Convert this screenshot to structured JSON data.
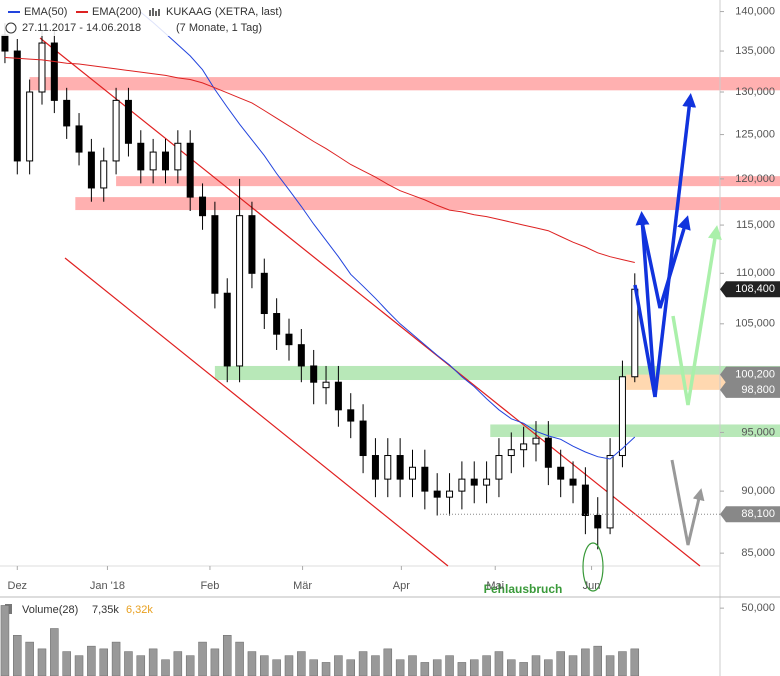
{
  "chart_data": {
    "type": "candlestick",
    "title": "KUKAAG (XETRA, last)",
    "subtitle": "27.11.2017 - 14.06.2018",
    "period": "(7 Monate, 1 Tag)",
    "log_scale": true,
    "ylim": [
      84000,
      141500
    ],
    "yticks": [
      {
        "value": 85000,
        "label": "85,000"
      },
      {
        "value": 90000,
        "label": "90,000"
      },
      {
        "value": 95000,
        "label": "95,000"
      },
      {
        "value": 105000,
        "label": "105,000"
      },
      {
        "value": 110000,
        "label": "110,000"
      },
      {
        "value": 115000,
        "label": "115,000"
      },
      {
        "value": 120000,
        "label": "120,000"
      },
      {
        "value": 125000,
        "label": "125,000"
      },
      {
        "value": 130000,
        "label": "130,000"
      },
      {
        "value": 135000,
        "label": "135,000"
      },
      {
        "value": 140000,
        "label": "140,000"
      }
    ],
    "xlim": [
      -0.4,
      57.9
    ],
    "xticks": [
      {
        "value": 1,
        "label": "Dez"
      },
      {
        "value": 8.3,
        "label": "Jan '18"
      },
      {
        "value": 16.6,
        "label": "Feb"
      },
      {
        "value": 24.1,
        "label": "Mär"
      },
      {
        "value": 32.1,
        "label": "Apr"
      },
      {
        "value": 39.7,
        "label": "Mai"
      },
      {
        "value": 47.5,
        "label": "Jun"
      }
    ],
    "open": [
      137000,
      135000,
      122000,
      130000,
      136000,
      129000,
      126000,
      123000,
      119000,
      122000,
      129000,
      124000,
      121000,
      123000,
      121000,
      124000,
      118000,
      116000,
      108000,
      101000,
      116000,
      110000,
      106000,
      104000,
      103000,
      101000,
      99000,
      99500,
      97000,
      96000,
      93000,
      91000,
      93000,
      91000,
      92000,
      90000,
      89500,
      90000,
      91000,
      90500,
      91000,
      93000,
      93500,
      94000,
      94500,
      92000,
      91000,
      90500,
      88000,
      87000,
      93000,
      100000
    ],
    "high": [
      138500,
      136500,
      131500,
      137500,
      137500,
      130500,
      127500,
      124500,
      123500,
      130500,
      130500,
      125500,
      124500,
      124500,
      125500,
      125500,
      119500,
      117500,
      109500,
      120000,
      117500,
      111500,
      107500,
      105500,
      104500,
      102500,
      101000,
      101000,
      98500,
      97500,
      94500,
      94500,
      94500,
      93500,
      93500,
      91500,
      91500,
      92500,
      92500,
      92500,
      94500,
      95000,
      95500,
      96000,
      96000,
      93500,
      92500,
      92000,
      89500,
      94500,
      101500,
      110000
    ],
    "low": [
      133500,
      120500,
      120500,
      128500,
      127500,
      124500,
      121500,
      117500,
      117500,
      120500,
      122500,
      119500,
      119500,
      119500,
      119500,
      116500,
      114500,
      106500,
      99500,
      99500,
      108500,
      104500,
      102500,
      101500,
      99500,
      97500,
      97500,
      95500,
      94500,
      91500,
      89500,
      89500,
      89500,
      89500,
      88500,
      88000,
      88000,
      88500,
      89000,
      89000,
      89500,
      91500,
      92000,
      92500,
      90500,
      89500,
      89000,
      86500,
      85300,
      86500,
      92000,
      99500
    ],
    "close": [
      135000,
      122000,
      130000,
      136000,
      129000,
      126000,
      123000,
      119000,
      122000,
      129000,
      124000,
      121000,
      123000,
      121000,
      124000,
      118000,
      116000,
      108000,
      101000,
      116000,
      110000,
      106000,
      104000,
      103000,
      101000,
      99500,
      99500,
      97000,
      96000,
      93000,
      91000,
      93000,
      91000,
      92000,
      90000,
      89500,
      90000,
      91000,
      90500,
      91000,
      93000,
      93500,
      94000,
      94500,
      92000,
      91000,
      90500,
      88000,
      87000,
      93000,
      100000,
      108400
    ],
    "series": [
      {
        "name": "EMA(50)",
        "color": "#2244dd",
        "values": [
          null,
          null,
          null,
          null,
          null,
          null,
          null,
          null,
          null,
          null,
          null,
          139900,
          138600,
          137200,
          135800,
          134400,
          132700,
          130300,
          128200,
          126200,
          124400,
          122600,
          120600,
          118800,
          117000,
          115100,
          113400,
          111700,
          109900,
          108700,
          107500,
          106200,
          105000,
          104000,
          103000,
          102000,
          101100,
          100000,
          99100,
          98000,
          97000,
          96200,
          95800,
          95100,
          94700,
          94400,
          93800,
          93300,
          92900,
          92700,
          93600,
          94600
        ]
      },
      {
        "name": "EMA(200)",
        "color": "#dd2222",
        "values": [
          134200,
          134100,
          134000,
          133900,
          133700,
          133500,
          133400,
          133200,
          133000,
          132800,
          132600,
          132400,
          132200,
          132000,
          131700,
          131500,
          131100,
          130500,
          129900,
          129300,
          128700,
          127800,
          126900,
          126000,
          125100,
          124200,
          123400,
          122500,
          121600,
          120900,
          120200,
          119400,
          118700,
          118200,
          117700,
          117100,
          116600,
          116400,
          116100,
          115900,
          115600,
          115300,
          115000,
          114700,
          114400,
          113800,
          113200,
          112700,
          112100,
          111700,
          111400,
          111100
        ]
      }
    ],
    "zones": [
      {
        "from": 130200,
        "to": 131800,
        "start": 2,
        "color": "#ffb0b0"
      },
      {
        "from": 119200,
        "to": 120300,
        "start": 9,
        "color": "#ffb0b0"
      },
      {
        "from": 116600,
        "to": 118000,
        "start": 5.7,
        "color": "#ffb0b0"
      },
      {
        "from": 99700,
        "to": 101000,
        "start": 17,
        "color": "#b8e8b8"
      },
      {
        "from": 94600,
        "to": 95700,
        "start": 39.3,
        "color": "#b8e8b8"
      },
      {
        "from": 98800,
        "to": 100200,
        "start": 50.3,
        "color": "#ffd8b0"
      }
    ],
    "price_labels": [
      {
        "value": 108400,
        "label": "108,400",
        "color": "#222222"
      },
      {
        "value": 100200,
        "label": "100,200",
        "color": "#888888"
      },
      {
        "value": 98800,
        "label": "98,800",
        "color": "#888888"
      },
      {
        "value": 88100,
        "label": "88,100",
        "color": "#888888",
        "guide": true
      }
    ],
    "annotation": "Fehlausbruch",
    "volume": {
      "label": "Volume(28)",
      "current": "7,35k",
      "average": "6,32k",
      "ylim": [
        0,
        56000
      ],
      "yticks": [
        {
          "value": 50000,
          "label": "50,000"
        }
      ],
      "color": "#999999",
      "values": [
        52000,
        30000,
        25000,
        20000,
        35000,
        18000,
        15000,
        22000,
        20000,
        25000,
        18000,
        15000,
        20000,
        12000,
        18000,
        15000,
        25000,
        20000,
        30000,
        25000,
        18000,
        15000,
        12000,
        15000,
        18000,
        12000,
        10000,
        15000,
        12000,
        18000,
        15000,
        20000,
        12000,
        15000,
        10000,
        12000,
        15000,
        10000,
        12000,
        15000,
        18000,
        12000,
        10000,
        15000,
        12000,
        18000,
        15000,
        20000,
        22000,
        15000,
        18000,
        20000
      ]
    }
  }
}
